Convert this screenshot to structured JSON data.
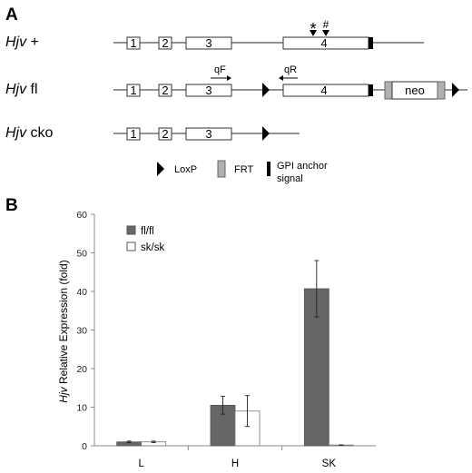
{
  "panels": {
    "a": "A",
    "b": "B"
  },
  "construct": {
    "rows": [
      {
        "gene": "Hjv",
        "suffix": " +"
      },
      {
        "gene": "Hjv",
        "suffix": " fl"
      },
      {
        "gene": "Hjv",
        "suffix": " cko"
      }
    ],
    "exons": [
      "1",
      "2",
      "3",
      "4"
    ],
    "neo": "neo",
    "markers": {
      "star": "*",
      "hash": "#"
    },
    "primers": {
      "forward": "qF",
      "reverse": "qR"
    },
    "legend": {
      "loxp": "LoxP",
      "frt": "FRT",
      "gpi_line1": "GPI anchor",
      "gpi_line2": "signal"
    }
  },
  "chart_data": {
    "type": "bar",
    "title": "",
    "xlabel": "",
    "ylabel_italic": "Hjv",
    "ylabel_rest": " Relative Expression (fold)",
    "categories": [
      "L",
      "H",
      "SK"
    ],
    "ylim": [
      0,
      60
    ],
    "yticks": [
      0,
      10,
      20,
      30,
      40,
      50,
      60
    ],
    "grid": false,
    "legend_position": "top-left",
    "series": [
      {
        "name": "fl/fl",
        "values": [
          1.0,
          10.5,
          40.7
        ],
        "errors": [
          0.2,
          2.3,
          7.3
        ],
        "color": "#666666"
      },
      {
        "name": "sk/sk",
        "values": [
          1.0,
          9.0,
          0.2
        ],
        "errors": [
          0.2,
          4.0,
          0.05
        ],
        "color": "#ffffff"
      }
    ]
  }
}
